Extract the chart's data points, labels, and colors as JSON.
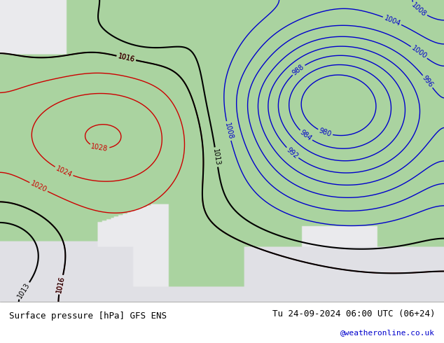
{
  "title_left": "Surface pressure [hPa] GFS ENS",
  "title_right": "Tu 24-09-2024 06:00 UTC (06+24)",
  "credit": "@weatheronline.co.uk",
  "map_bg_ocean": "#d0d8e0",
  "map_bg_land": "#aad4a0",
  "map_bg_gray": "#c8c8c8",
  "contour_blue_color": "#0000cc",
  "contour_red_color": "#cc0000",
  "contour_black_color": "#000000",
  "figsize": [
    6.34,
    4.9
  ],
  "dpi": 100,
  "text_color_left": "#000000",
  "text_color_right": "#000000",
  "text_color_credit": "#0000cc",
  "bottom_bg": "#ffffff",
  "font_size_bottom": 9
}
